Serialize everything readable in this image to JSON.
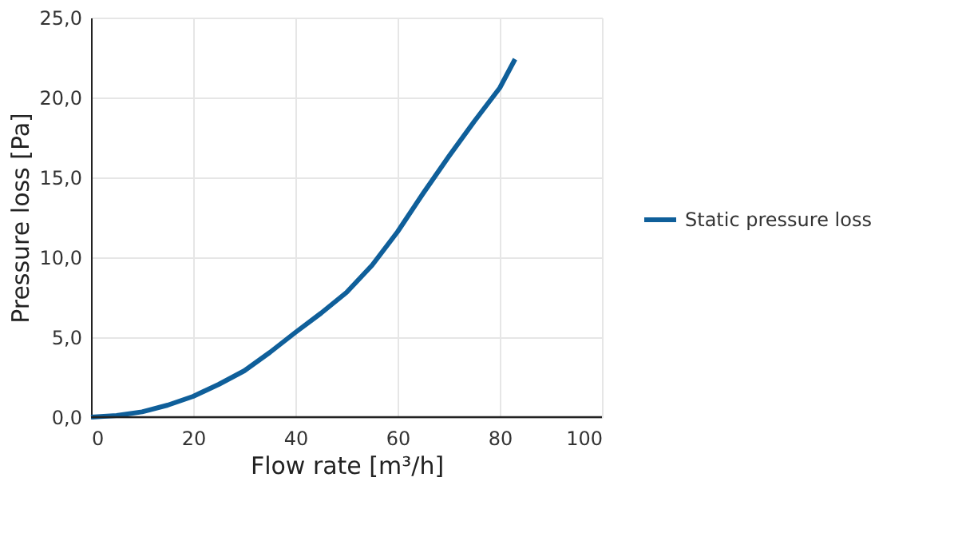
{
  "chart_data": {
    "type": "line",
    "xlabel": "Flow rate [m³/h]",
    "ylabel": "Pressure loss [Pa]",
    "x": [
      0,
      5,
      10,
      15,
      20,
      25,
      30,
      35,
      40,
      45,
      50,
      55,
      60,
      65,
      70,
      75,
      80,
      83
    ],
    "series": [
      {
        "name": "Static pressure loss",
        "color": "#0f5f9a",
        "values": [
          0,
          0.1,
          0.33,
          0.75,
          1.3,
          2.05,
          2.9,
          4.05,
          5.3,
          6.5,
          7.8,
          9.5,
          11.6,
          14.0,
          16.3,
          18.5,
          20.6,
          22.4
        ]
      }
    ],
    "xlim": [
      0,
      100
    ],
    "xticks": [
      0,
      20,
      40,
      60,
      80,
      100
    ],
    "ylim": [
      0,
      25
    ],
    "yticks": [
      {
        "value": 0,
        "label": "0,0"
      },
      {
        "value": 5,
        "label": "5,0"
      },
      {
        "value": 10,
        "label": "10,0"
      },
      {
        "value": 15,
        "label": "15,0"
      },
      {
        "value": 20,
        "label": "20,0"
      },
      {
        "value": 25,
        "label": "25,0"
      }
    ],
    "grid": true,
    "legend": "right",
    "marker": "none",
    "line_style": "solid"
  }
}
